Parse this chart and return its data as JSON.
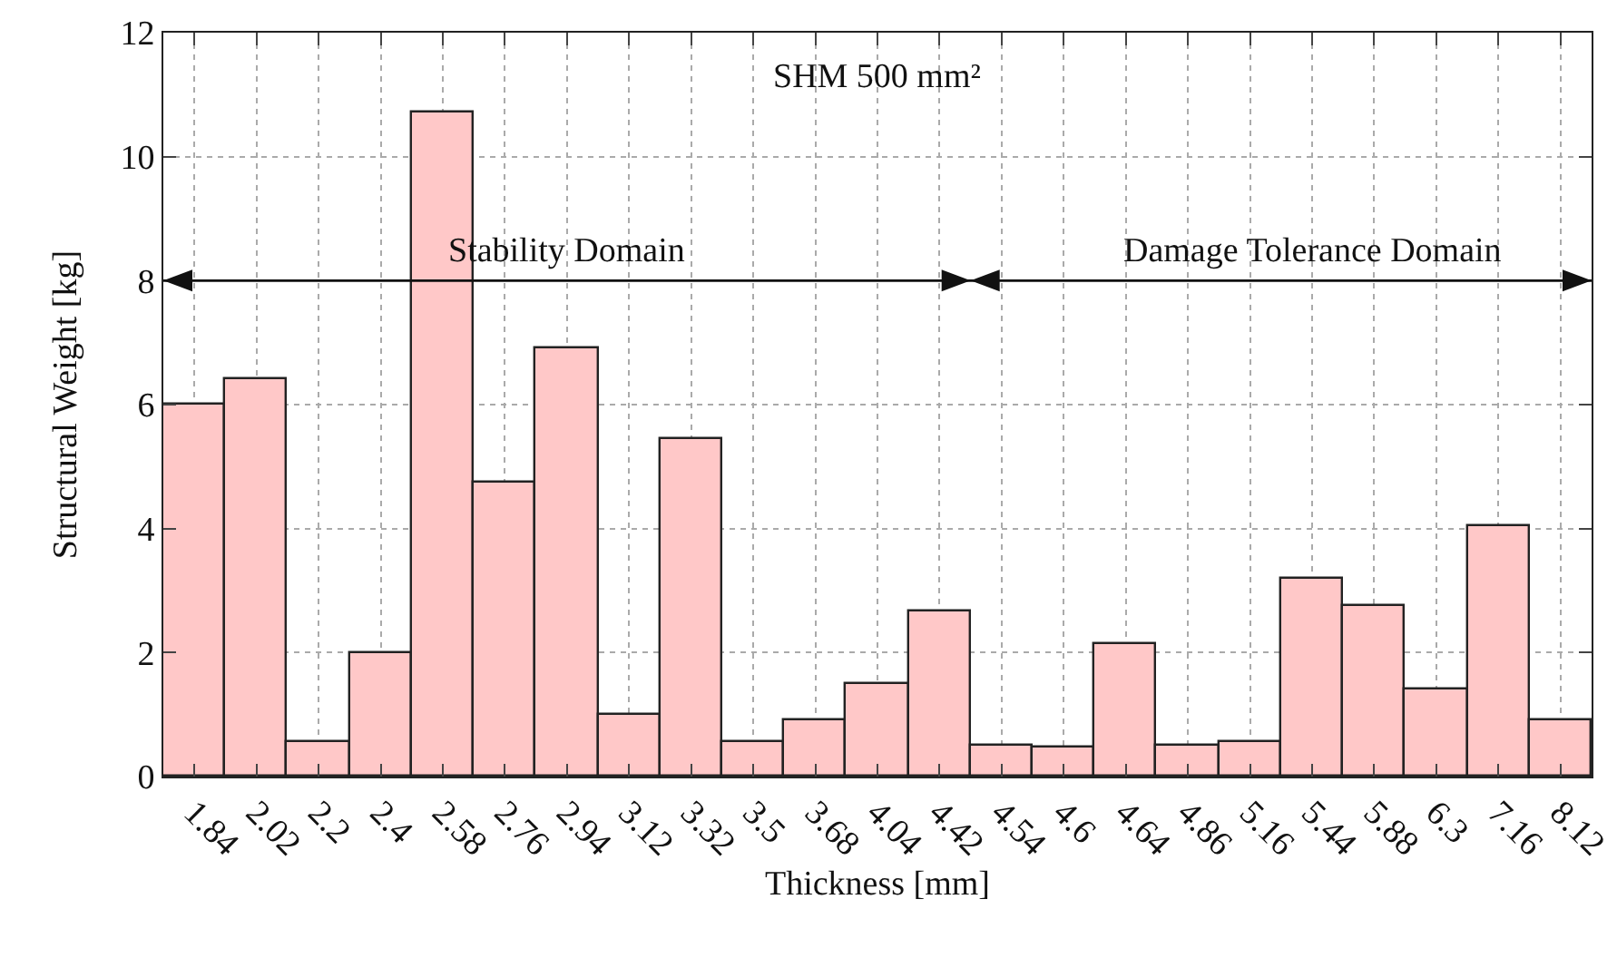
{
  "chart_data": {
    "type": "bar",
    "title": "SHM 500 mm²",
    "xlabel": "Thickness [mm]",
    "ylabel": "Structural Weight [kg]",
    "categories": [
      "1.84",
      "2.02",
      "2.2",
      "2.4",
      "2.58",
      "2.76",
      "2.94",
      "3.12",
      "3.32",
      "3.5",
      "3.68",
      "4.04",
      "4.42",
      "4.54",
      "4.6",
      "4.64",
      "4.86",
      "5.16",
      "5.44",
      "5.88",
      "6.3",
      "7.16",
      "8.12"
    ],
    "values": [
      6.0,
      6.4,
      0.55,
      2.0,
      10.7,
      4.75,
      6.9,
      1.0,
      5.45,
      0.55,
      0.9,
      1.5,
      2.65,
      0.5,
      0.47,
      2.15,
      0.5,
      0.55,
      3.2,
      2.75,
      1.4,
      4.05,
      0.9
    ],
    "color": "#ffc8c8",
    "ylim": [
      0,
      12
    ],
    "yticks": [
      0,
      2,
      4,
      6,
      8,
      10,
      12
    ],
    "grid": true,
    "ref_lines": [
      {
        "axis": "y",
        "value": 8
      }
    ],
    "annotations": [
      {
        "text": "Stability Domain",
        "x": "2.94",
        "y": 8
      },
      {
        "text": "Damage Tolerance Domain",
        "x": "5.44",
        "y": 8
      }
    ]
  }
}
